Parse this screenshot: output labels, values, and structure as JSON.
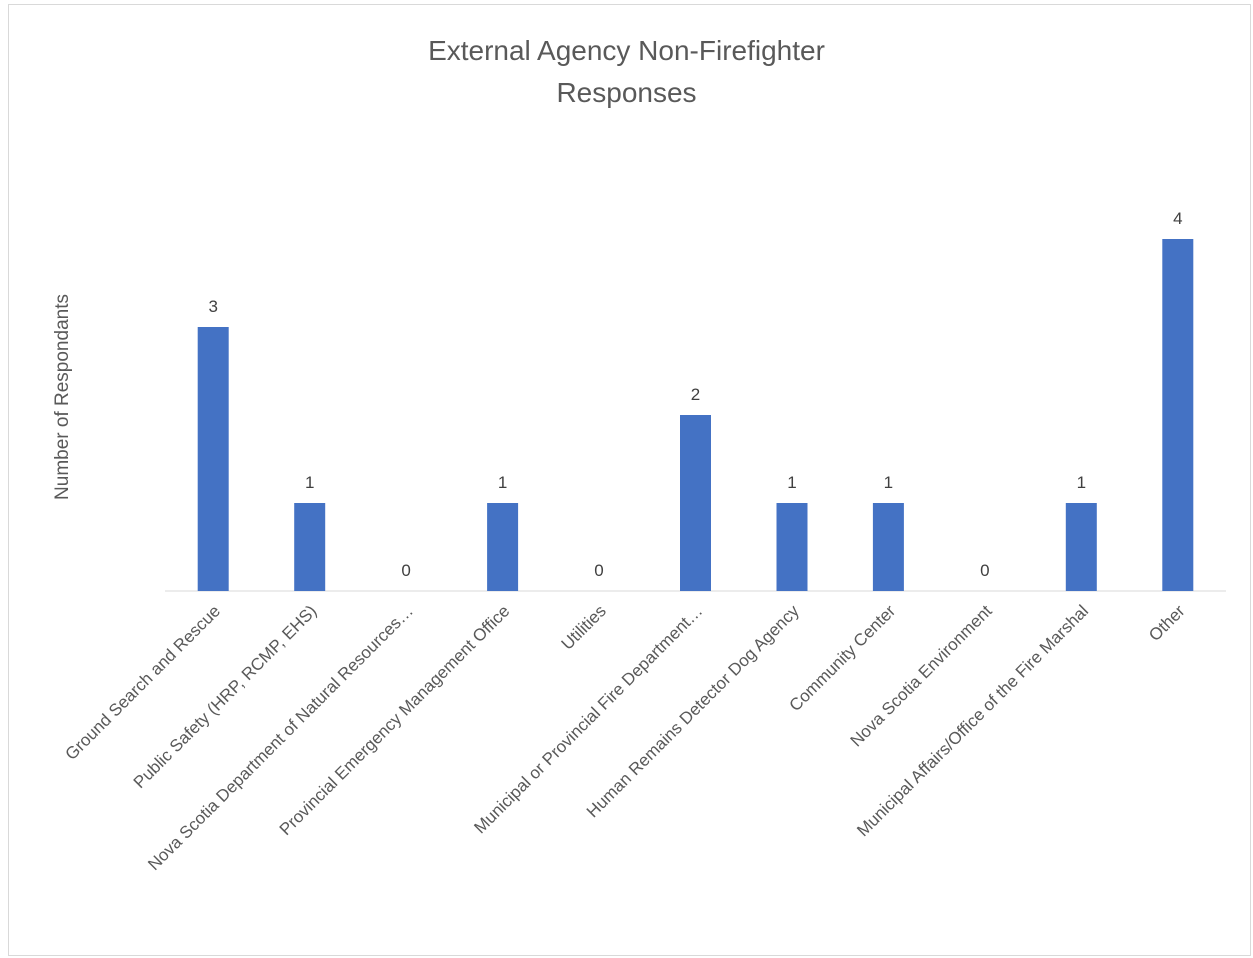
{
  "chart_data": {
    "type": "bar",
    "title_lines": [
      "External Agency Non-Firefighter",
      "Responses"
    ],
    "xlabel": "",
    "ylabel": "Number of Respondants",
    "categories": [
      "Ground Search and Rescue",
      "Public Safety (HRP, RCMP, EHS)",
      "Nova Scotia Department of Natural Resources…",
      "Provincial Emergency Management Office",
      "Utilities",
      "Municipal or Provincial Fire Department…",
      "Human Remains Detector Dog Agency",
      "Community Center",
      "Nova Scotia Environment",
      "Municipal Affairs/Office of the Fire Marshal",
      "Other"
    ],
    "values": [
      3,
      1,
      0,
      1,
      0,
      2,
      1,
      1,
      0,
      1,
      4
    ],
    "ylim": [
      0,
      4
    ],
    "grid": false,
    "legend": "none",
    "bar_color": "#4472c4",
    "axis_color": "#d9d9d9"
  }
}
